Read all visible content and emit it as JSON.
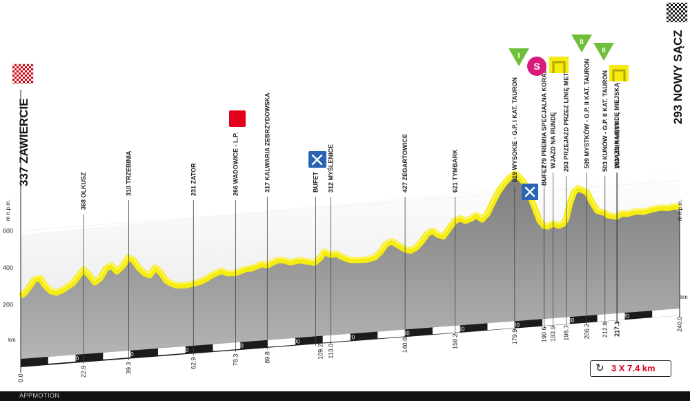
{
  "chart_data": {
    "type": "area",
    "x_unit": "km",
    "y_unit": "m n.p.m.",
    "xlim": [
      0,
      240
    ],
    "ylim": [
      100,
      900
    ],
    "y_ticks": [
      200,
      400,
      600
    ],
    "x_ticks": [
      20,
      40,
      60,
      80,
      100,
      120,
      140,
      160,
      180,
      200,
      220
    ],
    "y_axis_caption_left": "km",
    "y_axis_caption_top": "m n.p.m.",
    "x_axis_caption_right": "km",
    "profile": [
      [
        0,
        245
      ],
      [
        2,
        270
      ],
      [
        5,
        330
      ],
      [
        7,
        335
      ],
      [
        9,
        290
      ],
      [
        11,
        260
      ],
      [
        13,
        250
      ],
      [
        15,
        260
      ],
      [
        19,
        295
      ],
      [
        22.9,
        365
      ],
      [
        25,
        330
      ],
      [
        27,
        290
      ],
      [
        29,
        310
      ],
      [
        31,
        360
      ],
      [
        33,
        375
      ],
      [
        35,
        340
      ],
      [
        37,
        365
      ],
      [
        39.3,
        410
      ],
      [
        41,
        395
      ],
      [
        43,
        350
      ],
      [
        45,
        320
      ],
      [
        47,
        305
      ],
      [
        49,
        345
      ],
      [
        51,
        315
      ],
      [
        53,
        270
      ],
      [
        55,
        250
      ],
      [
        57,
        238
      ],
      [
        60,
        236
      ],
      [
        62.9,
        242
      ],
      [
        65,
        248
      ],
      [
        67,
        258
      ],
      [
        69,
        275
      ],
      [
        71,
        288
      ],
      [
        73,
        300
      ],
      [
        75,
        285
      ],
      [
        78.3,
        282
      ],
      [
        80,
        290
      ],
      [
        82,
        300
      ],
      [
        84,
        300
      ],
      [
        86,
        310
      ],
      [
        88,
        320
      ],
      [
        89.8,
        310
      ],
      [
        92,
        325
      ],
      [
        94,
        335
      ],
      [
        96,
        330
      ],
      [
        98,
        318
      ],
      [
        100,
        320
      ],
      [
        102,
        325
      ],
      [
        104,
        315
      ],
      [
        106,
        310
      ],
      [
        107,
        305
      ],
      [
        109.2,
        330
      ],
      [
        110.5,
        360
      ],
      [
        113.0,
        340
      ],
      [
        115,
        345
      ],
      [
        117,
        325
      ],
      [
        120,
        305
      ],
      [
        123,
        302
      ],
      [
        126,
        300
      ],
      [
        129,
        310
      ],
      [
        131,
        335
      ],
      [
        133,
        375
      ],
      [
        135,
        390
      ],
      [
        137,
        370
      ],
      [
        140.0,
        340
      ],
      [
        142,
        330
      ],
      [
        144,
        345
      ],
      [
        146,
        375
      ],
      [
        148,
        415
      ],
      [
        150,
        430
      ],
      [
        152,
        405
      ],
      [
        154,
        395
      ],
      [
        156,
        435
      ],
      [
        158.2,
        475
      ],
      [
        160,
        485
      ],
      [
        162,
        470
      ],
      [
        164,
        480
      ],
      [
        166,
        495
      ],
      [
        168,
        470
      ],
      [
        170,
        500
      ],
      [
        172,
        560
      ],
      [
        174,
        615
      ],
      [
        176,
        655
      ],
      [
        178,
        685
      ],
      [
        179.9,
        705
      ],
      [
        181,
        695
      ],
      [
        183,
        660
      ],
      [
        185,
        600
      ],
      [
        187,
        520
      ],
      [
        189,
        440
      ],
      [
        190.6,
        410
      ],
      [
        192,
        405
      ],
      [
        193.9,
        420
      ],
      [
        196,
        405
      ],
      [
        197.5,
        412
      ],
      [
        198.7,
        440
      ],
      [
        200,
        520
      ],
      [
        201.5,
        580
      ],
      [
        203,
        600
      ],
      [
        205,
        585
      ],
      [
        206.2,
        575
      ],
      [
        208,
        520
      ],
      [
        210,
        470
      ],
      [
        212.8,
        455
      ],
      [
        214,
        440
      ],
      [
        217.1,
        430
      ],
      [
        217.3,
        432
      ],
      [
        219,
        445
      ],
      [
        221,
        440
      ],
      [
        224,
        450
      ],
      [
        227,
        445
      ],
      [
        230,
        455
      ],
      [
        233,
        460
      ],
      [
        236,
        455
      ],
      [
        238,
        462
      ],
      [
        240.0,
        455
      ]
    ],
    "route_km_labels": [
      "0.0",
      "22.9",
      "39.3",
      "62.9",
      "78.3",
      "89.8",
      "109.2",
      "113.0",
      "140.0",
      "158.2",
      "179.9",
      "190.6",
      "193.9",
      "198.7",
      "206.2",
      "212.8",
      "217.1",
      "217.3",
      "240.0"
    ],
    "places": [
      {
        "km": 22.9,
        "label": "368 OLKUSZ",
        "bold": false
      },
      {
        "km": 39.3,
        "label": "310 TRZEBINIA",
        "bold": false
      },
      {
        "km": 62.9,
        "label": "231 ZATOR",
        "bold": false
      },
      {
        "km": 78.3,
        "label": "266 WADOWICE - L.P.",
        "bold": true
      },
      {
        "km": 89.8,
        "label": "317 KALWARIA ZEBRZYDOWSKA",
        "bold": false
      },
      {
        "km": 109.2,
        "label": "BUFET",
        "bold": true
      },
      {
        "km": 113.0,
        "label": "312 MYŚLENICE",
        "bold": false
      },
      {
        "km": 140.0,
        "label": "427 ZEGARTOWICE",
        "bold": false
      },
      {
        "km": 158.2,
        "label": "621 TYMBARK",
        "bold": false
      },
      {
        "km": 179.9,
        "label": "619 WYSOKIE - G.P. I KAT. TAURON",
        "bold": true
      },
      {
        "km": 190.6,
        "label": "BUFET",
        "bold": true
      },
      {
        "km": 190.6,
        "label": "279 PREMIA SPECJALNA KORAL",
        "bold": true
      },
      {
        "km": 193.9,
        "label": "WJAZD NA RUNDĘ",
        "bold": true
      },
      {
        "km": 198.7,
        "label": "293 PRZEJAZD PRZEZ LINIĘ METY",
        "bold": false
      },
      {
        "km": 206.2,
        "label": "509 MYSTKÓW - G.P. II KAT. TAURON",
        "bold": true
      },
      {
        "km": 212.8,
        "label": "503 KUNÓW - G.P. II KAT. TAURON",
        "bold": true
      },
      {
        "km": 217.1,
        "label": "WJAZD NA RUNDĘ MIEJSKĄ",
        "bold": true
      },
      {
        "km": 217.3,
        "label": "293 LINIA METY",
        "bold": true
      }
    ],
    "start": {
      "label": "337 ZAWIERCIE"
    },
    "finish": {
      "label": "293 NOWY SĄCZ"
    },
    "climb_markers": [
      "I",
      "II",
      "II"
    ],
    "sprint_marker": "S",
    "colors": {
      "profile_top": "#f5ec12",
      "profile_shade": "#c9be00",
      "terrain": "#8c8c8c",
      "band": "#ebebeb",
      "sprint": "#d81b7a",
      "climb": "#6fbf3a",
      "cut": "#e3001b"
    }
  },
  "laps_label": "3 X 7.4 km",
  "laps_icon": "loop-arrow-icon",
  "footer": {
    "brand": "APPMOTION"
  }
}
